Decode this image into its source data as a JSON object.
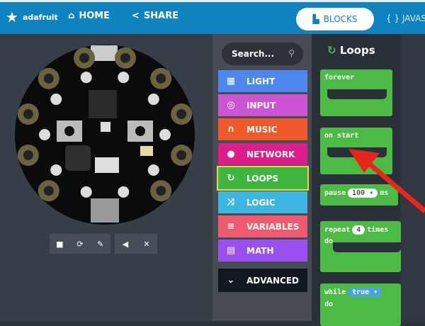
{
  "header": {
    "logo": "adafruit",
    "home": "HOME",
    "share": "SHARE",
    "blocks": "BLOCKS",
    "javascript": "{ } JAVAS"
  },
  "toolbox": {
    "search_placeholder": "Search...",
    "categories": [
      {
        "label": "LIGHT",
        "icon": "grid-icon",
        "color": "#4d87f0"
      },
      {
        "label": "INPUT",
        "icon": "target-icon",
        "color": "#cc55d6"
      },
      {
        "label": "MUSIC",
        "icon": "headphones-icon",
        "color": "#f0592b"
      },
      {
        "label": "NETWORK",
        "icon": "chat-icon",
        "color": "#de1d8c"
      },
      {
        "label": "LOOPS",
        "icon": "refresh-icon",
        "color": "#40b640"
      },
      {
        "label": "LOGIC",
        "icon": "shuffle-icon",
        "color": "#3db6e2"
      },
      {
        "label": "VARIABLES",
        "icon": "list-icon",
        "color": "#f05a6e"
      },
      {
        "label": "MATH",
        "icon": "calculator-icon",
        "color": "#9a4ff0"
      }
    ],
    "advanced": "ADVANCED"
  },
  "flyout": {
    "title": "Loops",
    "blocks": {
      "forever": "forever",
      "on_start": "on start",
      "pause": "pause",
      "pause_value": "100",
      "pause_unit": "ms",
      "repeat": "repeat",
      "repeat_value": "4",
      "repeat_unit": "times",
      "do": "do",
      "while": "while",
      "while_value": "true"
    }
  },
  "simulator": {
    "controls": [
      "stop-icon",
      "restart-icon",
      "screenshot-icon",
      "sound-icon",
      "fullscreen-icon"
    ]
  },
  "colors": {
    "header": "#0f82c0",
    "loops_block": "#4cbb45",
    "arrow": "#e8261c"
  }
}
